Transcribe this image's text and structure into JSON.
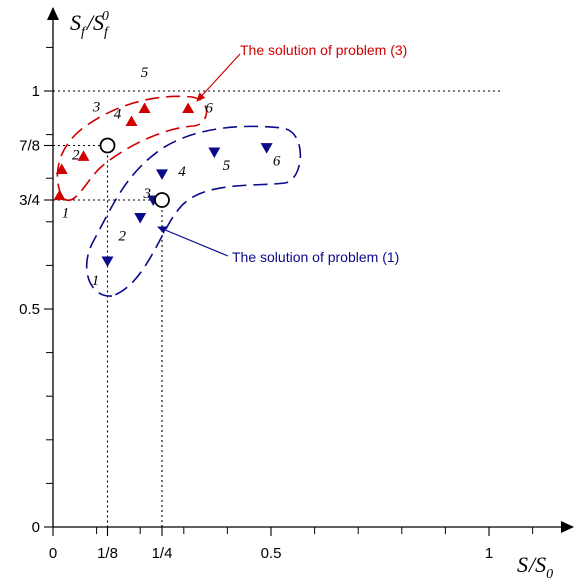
{
  "chart_data": {
    "type": "scatter",
    "title": "",
    "xlabel": {
      "main": "S",
      "sep": "/",
      "main2": "S",
      "sub2": "0"
    },
    "ylabel": {
      "main": "S",
      "sub": "f",
      "sep": "/",
      "main2": "S",
      "sub2": "f",
      "sup2": "0"
    },
    "xlim": [
      0,
      1.15
    ],
    "ylim": [
      0,
      1.15
    ],
    "x_ticks": [
      {
        "value": 0,
        "label": "0"
      },
      {
        "value": 0.125,
        "label": "1/8"
      },
      {
        "value": 0.25,
        "label": "1/4"
      },
      {
        "value": 0.5,
        "label": "0.5"
      },
      {
        "value": 1,
        "label": "1"
      }
    ],
    "y_ticks": [
      {
        "value": 0,
        "label": "0"
      },
      {
        "value": 0.5,
        "label": "0.5"
      },
      {
        "value": 0.75,
        "label": "3/4"
      },
      {
        "value": 0.875,
        "label": "7/8"
      },
      {
        "value": 1,
        "label": "1"
      }
    ],
    "minor_tick_step": 0.1,
    "series": [
      {
        "marker": "triangle-up",
        "color": "#d00000",
        "points": [
          {
            "x": 0.015,
            "y": 0.76,
            "label": "1"
          },
          {
            "x": 0.02,
            "y": 0.82,
            "label": "2"
          },
          {
            "x": 0.07,
            "y": 0.85,
            "label": "3"
          },
          {
            "x": 0.18,
            "y": 0.93,
            "label": "4"
          },
          {
            "x": 0.21,
            "y": 0.96,
            "label": ""
          },
          {
            "x": 0.31,
            "y": 0.96,
            "label": "6"
          }
        ]
      },
      {
        "marker": "triangle-down",
        "color": "#0a0a8a",
        "points": [
          {
            "x": 0.125,
            "y": 0.61,
            "label": "1"
          },
          {
            "x": 0.2,
            "y": 0.71,
            "label": "2"
          },
          {
            "x": 0.23,
            "y": 0.75,
            "label": "3"
          },
          {
            "x": 0.25,
            "y": 0.81,
            "label": "4"
          },
          {
            "x": 0.37,
            "y": 0.86,
            "label": "5"
          },
          {
            "x": 0.49,
            "y": 0.87,
            "label": "6"
          }
        ]
      }
    ],
    "extra_labels": [
      {
        "text": "5",
        "series": 0
      }
    ],
    "special_points": [
      {
        "x": 0.125,
        "y": 0.875
      },
      {
        "x": 0.25,
        "y": 0.75
      }
    ],
    "reference_line": {
      "y": 1
    },
    "annotations": [
      {
        "text": "The solution of problem (3)",
        "color": "#d00000"
      },
      {
        "text": "The solution of problem (1)",
        "color": "#0a0a8a"
      }
    ]
  }
}
